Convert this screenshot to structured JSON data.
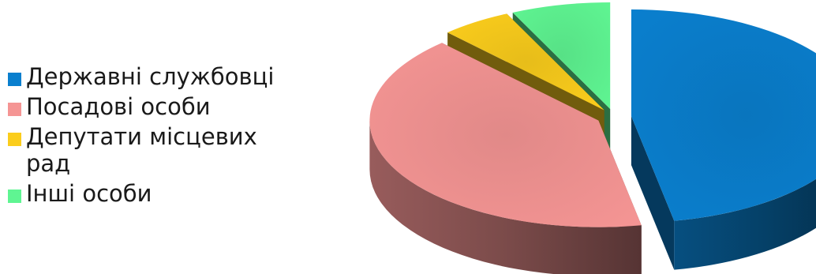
{
  "chart_data": {
    "type": "pie",
    "title": "",
    "three_d": true,
    "legend_position": "left",
    "categories": [
      "Державні службовці",
      "Посадові особи",
      "Депутати місцевих рад",
      "Інші особи"
    ],
    "values": [
      47,
      41,
      5,
      7
    ],
    "colors": [
      "#0a7fce",
      "#f59594",
      "#fbcd1c",
      "#5ff592"
    ],
    "exploded": [
      true,
      true,
      true,
      true
    ]
  }
}
